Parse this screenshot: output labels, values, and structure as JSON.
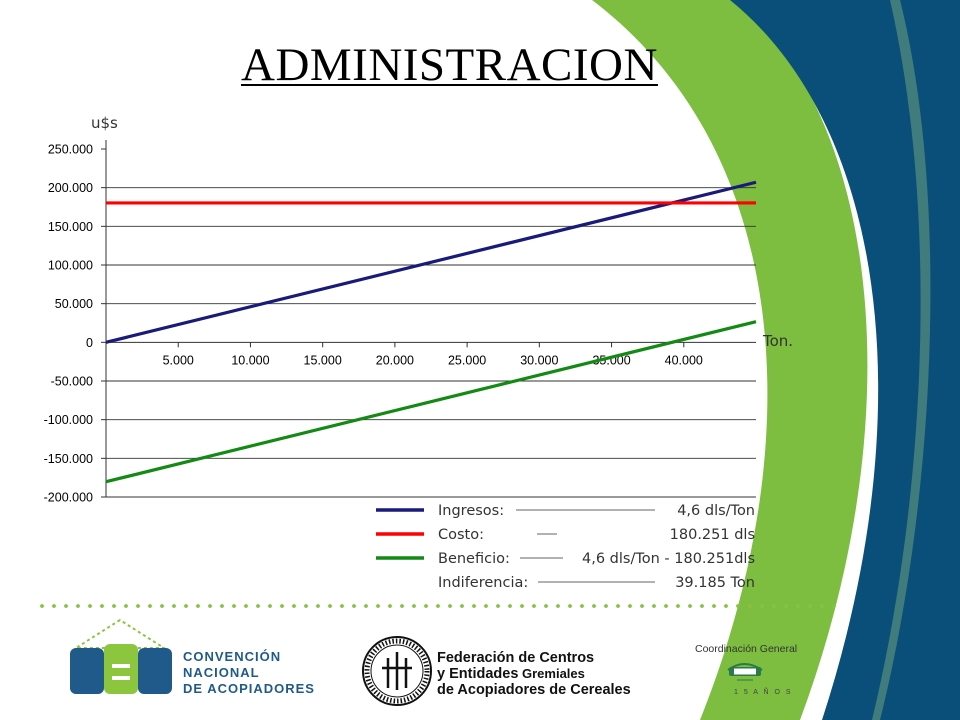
{
  "title": "ADMINISTRACION",
  "colors": {
    "ingresos": "#1a1a7a",
    "costo": "#ff0000",
    "beneficio": "#138a13",
    "side_navy": "#0a4f7a",
    "side_green": "#7dbd3f",
    "dots": "#86c240",
    "logo_blue": "#1f5a8a",
    "logo_green": "#8cc63f"
  },
  "chart_data": {
    "type": "line",
    "x_label": "Ton.",
    "y_label": "u$s",
    "xlim": [
      0,
      45000
    ],
    "ylim": [
      -200000,
      250000
    ],
    "grid": true,
    "x_ticks": [
      {
        "value": 5000,
        "label": "5.000"
      },
      {
        "value": 10000,
        "label": "10.000"
      },
      {
        "value": 15000,
        "label": "15.000"
      },
      {
        "value": 20000,
        "label": "20.000"
      },
      {
        "value": 25000,
        "label": "25.000"
      },
      {
        "value": 30000,
        "label": "30.000"
      },
      {
        "value": 35000,
        "label": "35.000"
      },
      {
        "value": 40000,
        "label": "40.000"
      }
    ],
    "y_ticks": [
      {
        "value": 250000,
        "label": "250.000"
      },
      {
        "value": 200000,
        "label": "200.000"
      },
      {
        "value": 150000,
        "label": "150.000"
      },
      {
        "value": 100000,
        "label": "100.000"
      },
      {
        "value": 50000,
        "label": "50.000"
      },
      {
        "value": 0,
        "label": "0"
      },
      {
        "value": -50000,
        "label": "-50.000"
      },
      {
        "value": -100000,
        "label": "-100.000"
      },
      {
        "value": -150000,
        "label": "-150.000"
      },
      {
        "value": -200000,
        "label": "-200.000"
      }
    ],
    "series": [
      {
        "key": "ingresos",
        "x": [
          0,
          45000
        ],
        "y": [
          0,
          207000
        ]
      },
      {
        "key": "costo",
        "x": [
          0,
          45000
        ],
        "y": [
          180251,
          180251
        ]
      },
      {
        "key": "beneficio",
        "x": [
          0,
          45000
        ],
        "y": [
          -180251,
          26749
        ]
      }
    ],
    "legend": {
      "placement": "bottom-right",
      "items": [
        {
          "key": "ingresos",
          "label": "Ingresos:",
          "value": "4,6 dls/Ton"
        },
        {
          "key": "costo",
          "label": "Costo:",
          "value": "180.251 dls"
        },
        {
          "key": "beneficio",
          "label": "Beneficio:",
          "value": "4,6 dls/Ton - 180.251dls"
        },
        {
          "key": "indiferencia",
          "label": "Indiferencia:",
          "value": "39.185 Ton"
        }
      ]
    }
  },
  "footer": {
    "logo1": {
      "line1": "CONVENCIÓN",
      "line2": "NACIONAL",
      "line3": "DE ACOPIADORES"
    },
    "logo2": {
      "line1": "Federación de Centros",
      "line2a": "y Entidades",
      "line2b": " Gremiales",
      "line3": "de Acopiadores de Cereales"
    },
    "logo3": {
      "caption": "Coordinación General"
    }
  }
}
